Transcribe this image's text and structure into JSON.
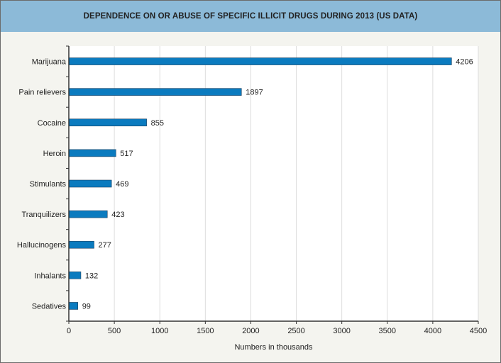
{
  "chart_data": {
    "type": "bar",
    "orientation": "horizontal",
    "title": "DEPENDENCE ON OR ABUSE OF SPECIFIC ILLICIT DRUGS DURING 2013 (US DATA)",
    "xlabel": "Numbers in thousands",
    "ylabel": "",
    "categories": [
      "Marijuana",
      "Pain relievers",
      "Cocaine",
      "Heroin",
      "Stimulants",
      "Tranquilizers",
      "Hallucinogens",
      "Inhalants",
      "Sedatives"
    ],
    "values": [
      4206,
      1897,
      855,
      517,
      469,
      423,
      277,
      132,
      99
    ],
    "xlim": [
      0,
      4500
    ],
    "xticks": [
      0,
      500,
      1000,
      1500,
      2000,
      2500,
      3000,
      3500,
      4000,
      4500
    ],
    "grid": "vertical",
    "data_labels": true,
    "colors": {
      "bar": "#0b7bbf",
      "bar_border": "#1d3f5e",
      "header": "#8cbad8",
      "background": "#f4f4ef",
      "grid": "#dddddd"
    }
  }
}
